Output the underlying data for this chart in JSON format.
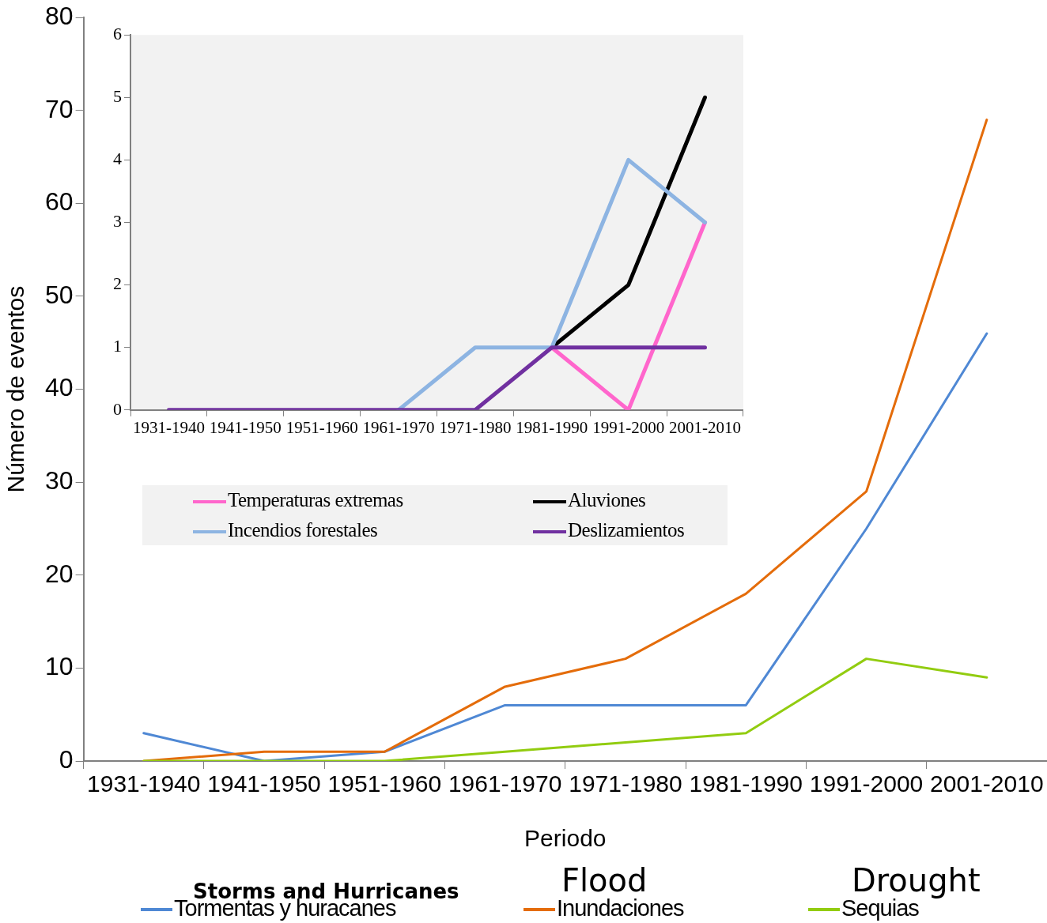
{
  "chart_data": [
    {
      "type": "line",
      "xlabel": "Periodo",
      "ylabel": "Número de eventos",
      "categories": [
        "1931-1940",
        "1941-1950",
        "1951-1960",
        "1961-1970",
        "1971-1980",
        "1981-1990",
        "1991-2000",
        "2001-2010"
      ],
      "series": [
        {
          "name": "Tormentas y huracanes",
          "color": "#4f88d4",
          "values": [
            3,
            0,
            1,
            6,
            6,
            6,
            25,
            46
          ]
        },
        {
          "name": "Inundaciones",
          "color": "#e46c0a",
          "values": [
            0,
            1,
            1,
            8,
            11,
            18,
            29,
            69
          ]
        },
        {
          "name": "Sequias",
          "color": "#92cc10",
          "values": [
            0,
            0,
            0,
            1,
            2,
            3,
            11,
            9
          ]
        }
      ],
      "ylim": [
        0,
        80
      ],
      "yticks": [
        0,
        10,
        20,
        30,
        40,
        50,
        60,
        70,
        80
      ],
      "legend": "bottom",
      "marker": "none",
      "annotations": [
        "Storms and Hurricanes",
        "Flood",
        "Drought"
      ]
    },
    {
      "type": "line",
      "categories": [
        "1931-1940",
        "1941-1950",
        "1951-1960",
        "1961-1970",
        "1971-1980",
        "1981-1990",
        "1991-2000",
        "2001-2010"
      ],
      "series": [
        {
          "name": "Temperaturas extremas",
          "color": "#ff66cc",
          "values": [
            null,
            null,
            null,
            null,
            null,
            1,
            0,
            3
          ]
        },
        {
          "name": "Aluviones",
          "color": "#000000",
          "values": [
            null,
            null,
            null,
            null,
            null,
            1,
            2,
            5
          ]
        },
        {
          "name": "Incendios forestales",
          "color": "#8db4e2",
          "values": [
            null,
            null,
            null,
            0,
            1,
            1,
            4,
            3
          ]
        },
        {
          "name": "Deslizamientos",
          "color": "#7030a0",
          "values": [
            0,
            0,
            0,
            0,
            0,
            1,
            1,
            1
          ]
        }
      ],
      "ylim": [
        0,
        6
      ],
      "yticks": [
        0,
        1,
        2,
        3,
        4,
        5,
        6
      ],
      "legend": "bottom",
      "marker": "none"
    }
  ]
}
